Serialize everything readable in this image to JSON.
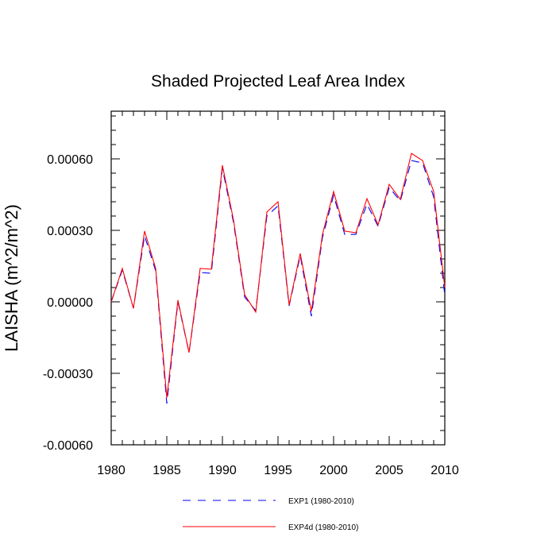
{
  "chart_data": {
    "type": "line",
    "title": "Shaded Projected Leaf Area Index",
    "xlabel": "",
    "ylabel": "LAISHA  (m^2/m^2)",
    "xlim": [
      1980,
      2010
    ],
    "ylim": [
      -0.0006,
      0.0008
    ],
    "x_major_ticks": [
      1980,
      1985,
      1990,
      1995,
      2000,
      2005,
      2010
    ],
    "x_tick_labels": [
      "1980",
      "1985",
      "1990",
      "1995",
      "2000",
      "2005",
      "2010"
    ],
    "y_major_ticks": [
      -0.0006,
      -0.0003,
      0.0,
      0.0003,
      0.0006
    ],
    "y_tick_labels": [
      "-0.00060",
      "-0.00030",
      "0.00000",
      "0.00030",
      "0.00060"
    ],
    "grid": false,
    "legend_position": "bottom",
    "x": [
      1980,
      1981,
      1982,
      1983,
      1984,
      1985,
      1986,
      1987,
      1988,
      1989,
      1990,
      1991,
      1992,
      1993,
      1994,
      1995,
      1996,
      1997,
      1998,
      1999,
      2000,
      2001,
      2002,
      2003,
      2004,
      2005,
      2006,
      2007,
      2008,
      2009,
      2010
    ],
    "series": [
      {
        "name": "EXP1 (1980-2010)",
        "color": "#0000ff",
        "dash": "dashed",
        "values": [
          0.0,
          0.000133,
          -2.7e-05,
          0.000277,
          0.00013,
          -0.000427,
          0.0,
          -0.000213,
          0.000123,
          0.00012,
          0.00056,
          0.000333,
          2e-05,
          -3.7e-05,
          0.00036,
          0.000403,
          -1.7e-05,
          0.000193,
          -6e-05,
          0.00027,
          0.000447,
          0.000283,
          0.000283,
          0.00041,
          0.000317,
          0.00048,
          0.000423,
          0.000593,
          0.000583,
          0.00044,
          2.7e-05
        ]
      },
      {
        "name": "EXP4d (1980-2010)",
        "color": "#ff0000",
        "dash": "solid",
        "values": [
          0.0,
          0.00014,
          -2.7e-05,
          0.000297,
          0.00014,
          -0.000403,
          7e-06,
          -0.000213,
          0.00014,
          0.000137,
          0.000573,
          0.000343,
          3e-05,
          -4.3e-05,
          0.000377,
          0.00042,
          -1.3e-05,
          0.000203,
          -4e-05,
          0.000283,
          0.000463,
          0.000297,
          0.00029,
          0.000433,
          0.000323,
          0.000493,
          0.00043,
          0.000623,
          0.000593,
          0.000463,
          6e-05
        ]
      }
    ]
  }
}
